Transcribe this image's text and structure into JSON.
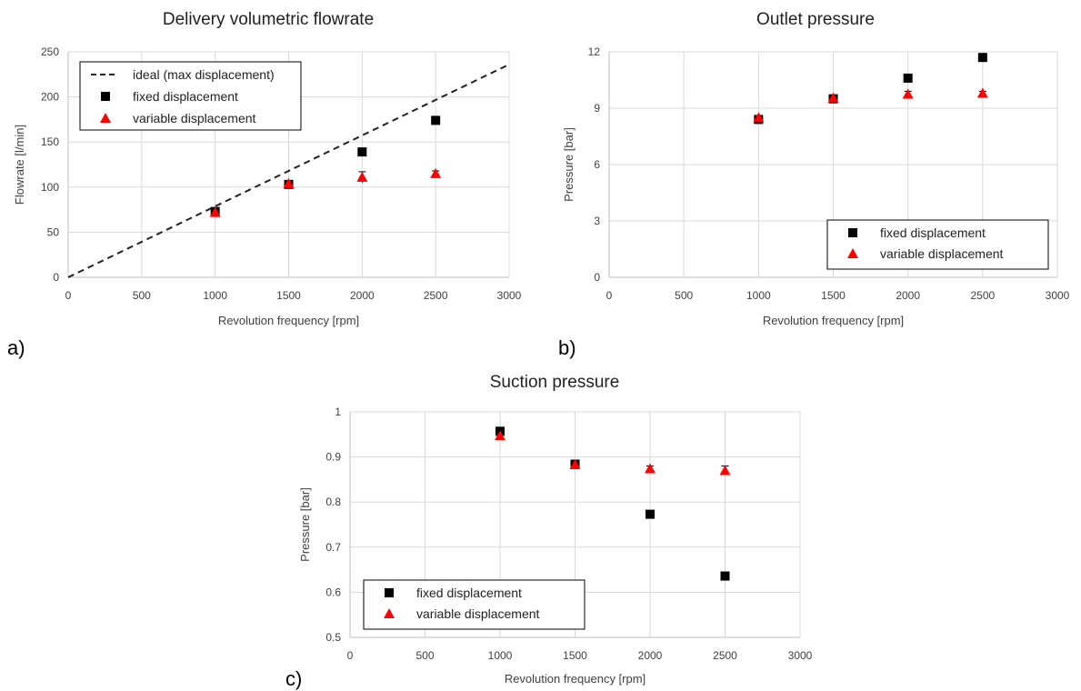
{
  "panel_labels": [
    "a)",
    "b)",
    "c)"
  ],
  "colors": {
    "fixed": "#000000",
    "variable": "#ff0000",
    "ideal": "#222222",
    "grid": "#d9d9d9"
  },
  "chart_data": [
    {
      "type": "scatter",
      "title": "Delivery volumetric flowrate",
      "xlabel": "Revolution frequency [rpm]",
      "ylabel": "Flowrate [l/min]",
      "xlim": [
        0,
        3000
      ],
      "ylim": [
        0,
        250
      ],
      "xticks": [
        0,
        500,
        1000,
        1500,
        2000,
        2500,
        3000
      ],
      "yticks": [
        0,
        50,
        100,
        150,
        200,
        250
      ],
      "grid": true,
      "legend_position": "top-left",
      "series": [
        {
          "name": "ideal (max displacement)",
          "kind": "dashed-line",
          "x": [
            0,
            3000
          ],
          "y": [
            0,
            236
          ]
        },
        {
          "name": "fixed displacement",
          "marker": "square",
          "x": [
            1000,
            1500,
            2000,
            2500
          ],
          "y": [
            73,
            103,
            139,
            174
          ]
        },
        {
          "name": "variable displacement",
          "marker": "triangle",
          "x": [
            1000,
            1500,
            2000,
            2500
          ],
          "y": [
            72,
            104,
            111,
            115
          ],
          "err": [
            3,
            2,
            6,
            3
          ]
        }
      ]
    },
    {
      "type": "scatter",
      "title": "Outlet pressure",
      "xlabel": "Revolution frequency [rpm]",
      "ylabel": "Pressure [bar]",
      "xlim": [
        0,
        3000
      ],
      "ylim": [
        0,
        12
      ],
      "xticks": [
        0,
        500,
        1000,
        1500,
        2000,
        2500,
        3000
      ],
      "yticks": [
        0,
        3,
        6,
        9,
        12
      ],
      "grid": true,
      "legend_position": "bottom-right",
      "series": [
        {
          "name": "fixed displacement",
          "marker": "square",
          "x": [
            1000,
            1500,
            2000,
            2500
          ],
          "y": [
            8.4,
            9.5,
            10.6,
            11.7
          ]
        },
        {
          "name": "variable displacement",
          "marker": "triangle",
          "x": [
            1000,
            1500,
            2000,
            2500
          ],
          "y": [
            8.5,
            9.55,
            9.75,
            9.8
          ],
          "err": [
            0.1,
            0.1,
            0.15,
            0.1
          ]
        }
      ]
    },
    {
      "type": "scatter",
      "title": "Suction pressure",
      "xlabel": "Revolution frequency [rpm]",
      "ylabel": "Pressure [bar]",
      "xlim": [
        0,
        3000
      ],
      "ylim": [
        0.5,
        1
      ],
      "xticks": [
        0,
        500,
        1000,
        1500,
        2000,
        2500,
        3000
      ],
      "yticks": [
        0.5,
        0.6,
        0.7,
        0.8,
        0.9,
        1
      ],
      "grid": true,
      "legend_position": "bottom-left",
      "series": [
        {
          "name": "fixed displacement",
          "marker": "square",
          "x": [
            1000,
            1500,
            2000,
            2500
          ],
          "y": [
            0.957,
            0.884,
            0.773,
            0.636
          ]
        },
        {
          "name": "variable displacement",
          "marker": "triangle",
          "x": [
            1000,
            1500,
            2000,
            2500
          ],
          "y": [
            0.947,
            0.883,
            0.874,
            0.87
          ],
          "err": [
            0.004,
            0.004,
            0.006,
            0.01
          ]
        }
      ]
    }
  ]
}
